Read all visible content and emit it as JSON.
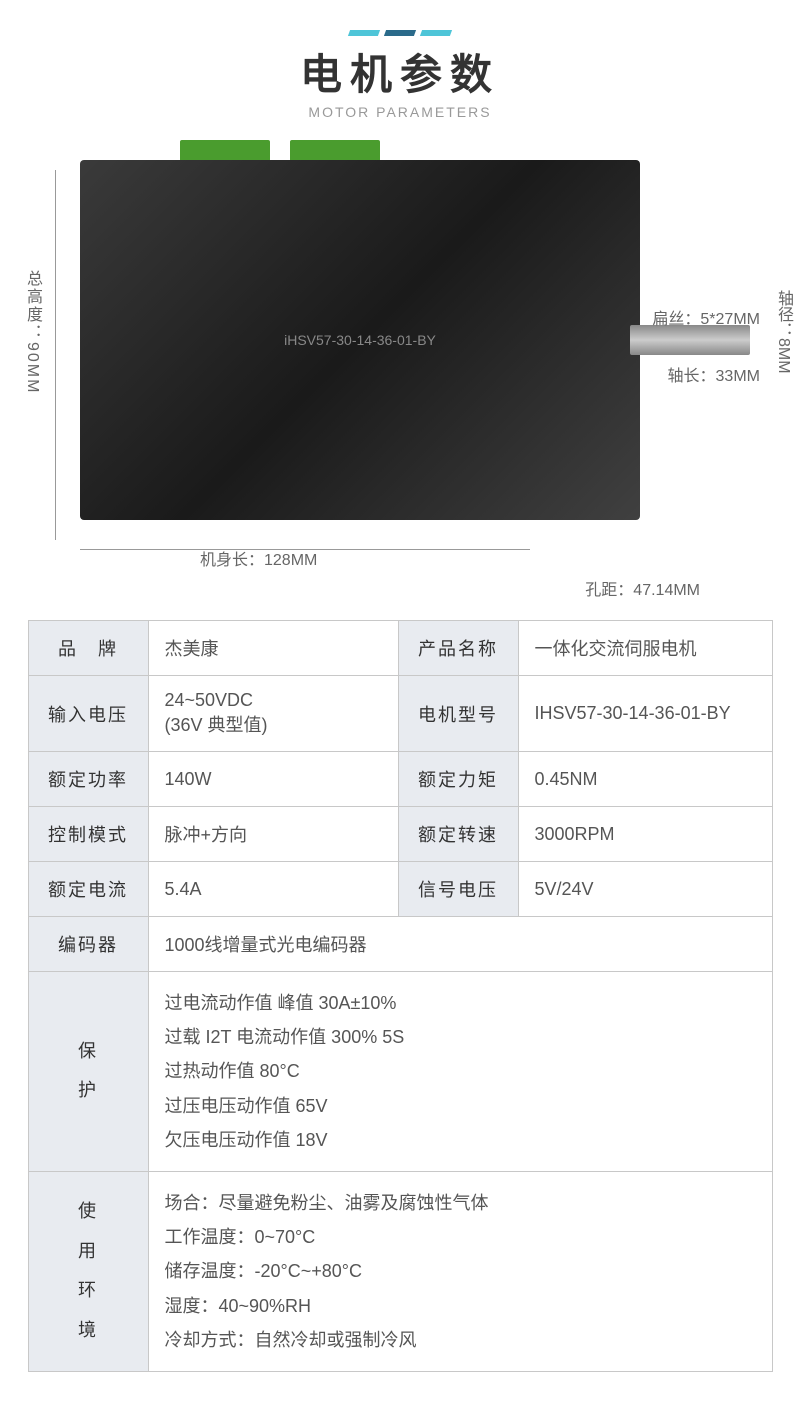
{
  "header": {
    "title_cn": "电机参数",
    "title_en": "MOTOR PARAMETERS",
    "dash_colors": [
      "#4ec5d8",
      "#2a6a8a",
      "#4ec5d8"
    ]
  },
  "dimensions": {
    "height_label": "总高度：90MM",
    "body_length": "机身长：128MM",
    "hole_distance": "孔距：47.14MM",
    "key": "扁丝：5*27MM",
    "shaft_diameter": "轴径：8MM",
    "shaft_length": "轴长：33MM"
  },
  "specs": {
    "rows_4col": [
      {
        "l1": "品　牌",
        "v1": "杰美康",
        "l2": "产品名称",
        "v2": "一体化交流伺服电机"
      },
      {
        "l1": "输入电压",
        "v1": " 24~50VDC\n(36V 典型值)",
        "l2": "电机型号",
        "v2": "IHSV57-30-14-36-01-BY"
      },
      {
        "l1": "额定功率",
        "v1": "140W",
        "l2": "额定力矩",
        "v2": "0.45NM"
      },
      {
        "l1": "控制模式",
        "v1": "脉冲+方向",
        "l2": "额定转速",
        "v2": "3000RPM"
      },
      {
        "l1": "额定电流",
        "v1": "5.4A",
        "l2": "信号电压",
        "v2": "5V/24V"
      }
    ],
    "encoder": {
      "label": "编码器",
      "value": "1000线增量式光电编码器"
    },
    "protection": {
      "label": "保\n护",
      "value": "过电流动作值 峰值 30A±10%\n过载 I2T 电流动作值 300% 5S\n过热动作值 80°C\n过压电压动作值 65V\n欠压电压动作值 18V"
    },
    "environment": {
      "label": "使\n用\n环\n境",
      "value": "场合：尽量避免粉尘、油雾及腐蚀性气体\n工作温度：0~70°C\n储存温度：-20°C~+80°C\n湿度：40~90%RH\n冷却方式：自然冷却或强制冷风"
    }
  },
  "motor_label": "iHSV57-30-14-36-01-BY"
}
